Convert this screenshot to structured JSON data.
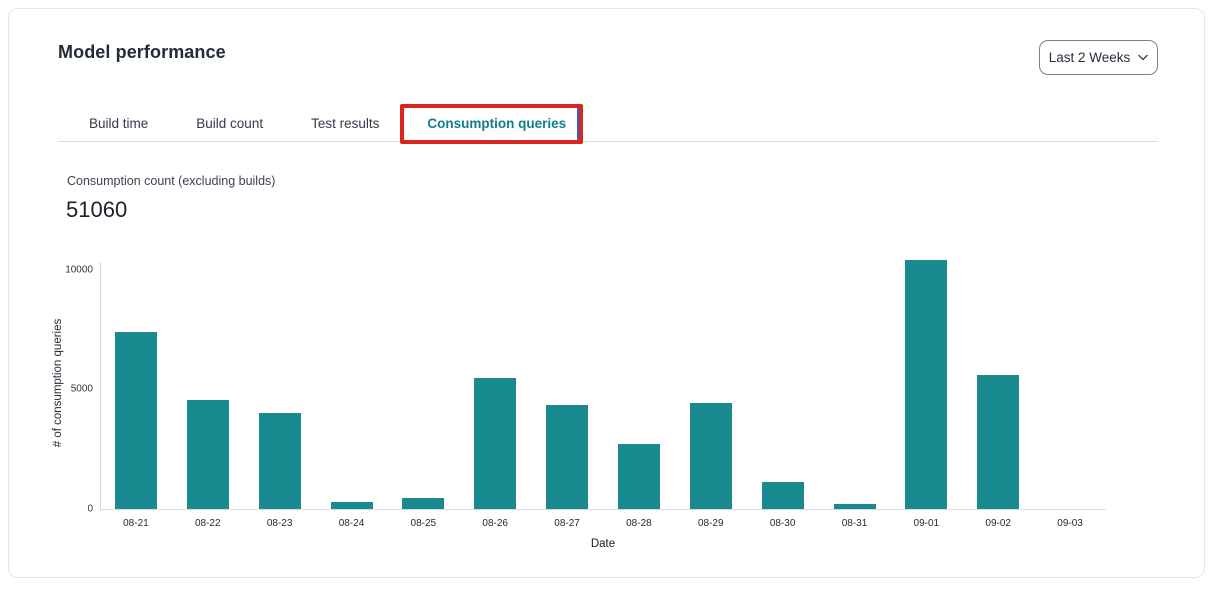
{
  "header": {
    "title": "Model performance",
    "time_range": {
      "label": "Last 2 Weeks"
    }
  },
  "tabs": [
    {
      "label": "Build time",
      "active": false
    },
    {
      "label": "Build count",
      "active": false
    },
    {
      "label": "Test results",
      "active": false
    },
    {
      "label": "Consumption queries",
      "active": true
    }
  ],
  "annotation": {
    "highlighted_tab": "Consumption queries",
    "box_color": "#da251d",
    "inner_edge_color": "#2f5fc7"
  },
  "metric": {
    "label": "Consumption count (excluding builds)",
    "value": "51060"
  },
  "chart_data": {
    "type": "bar",
    "title": "",
    "categories": [
      "08-21",
      "08-22",
      "08-23",
      "08-24",
      "08-25",
      "08-26",
      "08-27",
      "08-28",
      "08-29",
      "08-30",
      "08-31",
      "09-01",
      "09-02",
      "09-03"
    ],
    "values": [
      7400,
      4560,
      4000,
      310,
      440,
      5480,
      4330,
      2720,
      4450,
      1150,
      230,
      10400,
      5590,
      0
    ],
    "xlabel": "Date",
    "ylabel": "# of consumption queries",
    "yticks": [
      0,
      5000,
      10000
    ],
    "ylim": [
      0,
      10500
    ],
    "bar_color": "#17898f",
    "grid": false,
    "legend": null
  },
  "colors": {
    "card_border": "#e4e4ec",
    "divider": "#d9dce1",
    "active_tab": "#137e87",
    "annotation_red": "#da251d",
    "bar_teal": "#17898f"
  }
}
